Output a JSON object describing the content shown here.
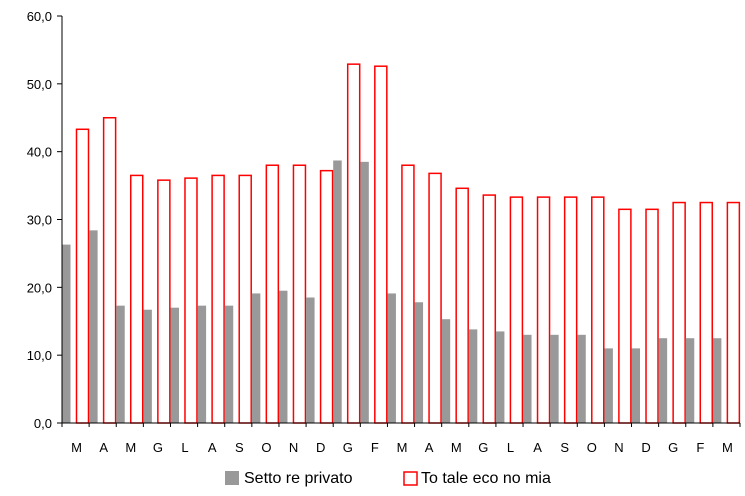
{
  "chart_data": {
    "type": "bar",
    "categories": [
      "M",
      "A",
      "M",
      "G",
      "L",
      "A",
      "S",
      "O",
      "N",
      "D",
      "G",
      "F",
      "M",
      "A",
      "M",
      "G",
      "L",
      "A",
      "S",
      "O",
      "N",
      "D",
      "G",
      "F",
      "M"
    ],
    "series": [
      {
        "name": "Settore privato",
        "color": "#999999",
        "style": "filled",
        "values": [
          26.3,
          28.4,
          17.3,
          16.7,
          17.0,
          17.3,
          17.3,
          19.1,
          19.5,
          18.5,
          38.7,
          38.5,
          19.1,
          17.8,
          15.3,
          13.8,
          13.5,
          13.0,
          13.0,
          13.0,
          11.0,
          11.0,
          12.5,
          12.5,
          12.5
        ]
      },
      {
        "name": "Totale economia",
        "color": "#ff0000",
        "style": "outline",
        "values": [
          43.3,
          45.0,
          36.5,
          35.8,
          36.1,
          36.5,
          36.5,
          38.0,
          38.0,
          37.2,
          52.9,
          52.6,
          38.0,
          36.8,
          34.6,
          33.6,
          33.3,
          33.3,
          33.3,
          33.3,
          31.5,
          31.5,
          32.5,
          32.5,
          32.5
        ]
      }
    ],
    "y_ticks": [
      "0,0",
      "10,0",
      "20,0",
      "30,0",
      "40,0",
      "50,0",
      "60,0"
    ],
    "ylim": [
      0,
      60
    ],
    "grid": false,
    "legend_position": "bottom",
    "legend": [
      "Setto re privato",
      "To tale eco no mia"
    ]
  }
}
